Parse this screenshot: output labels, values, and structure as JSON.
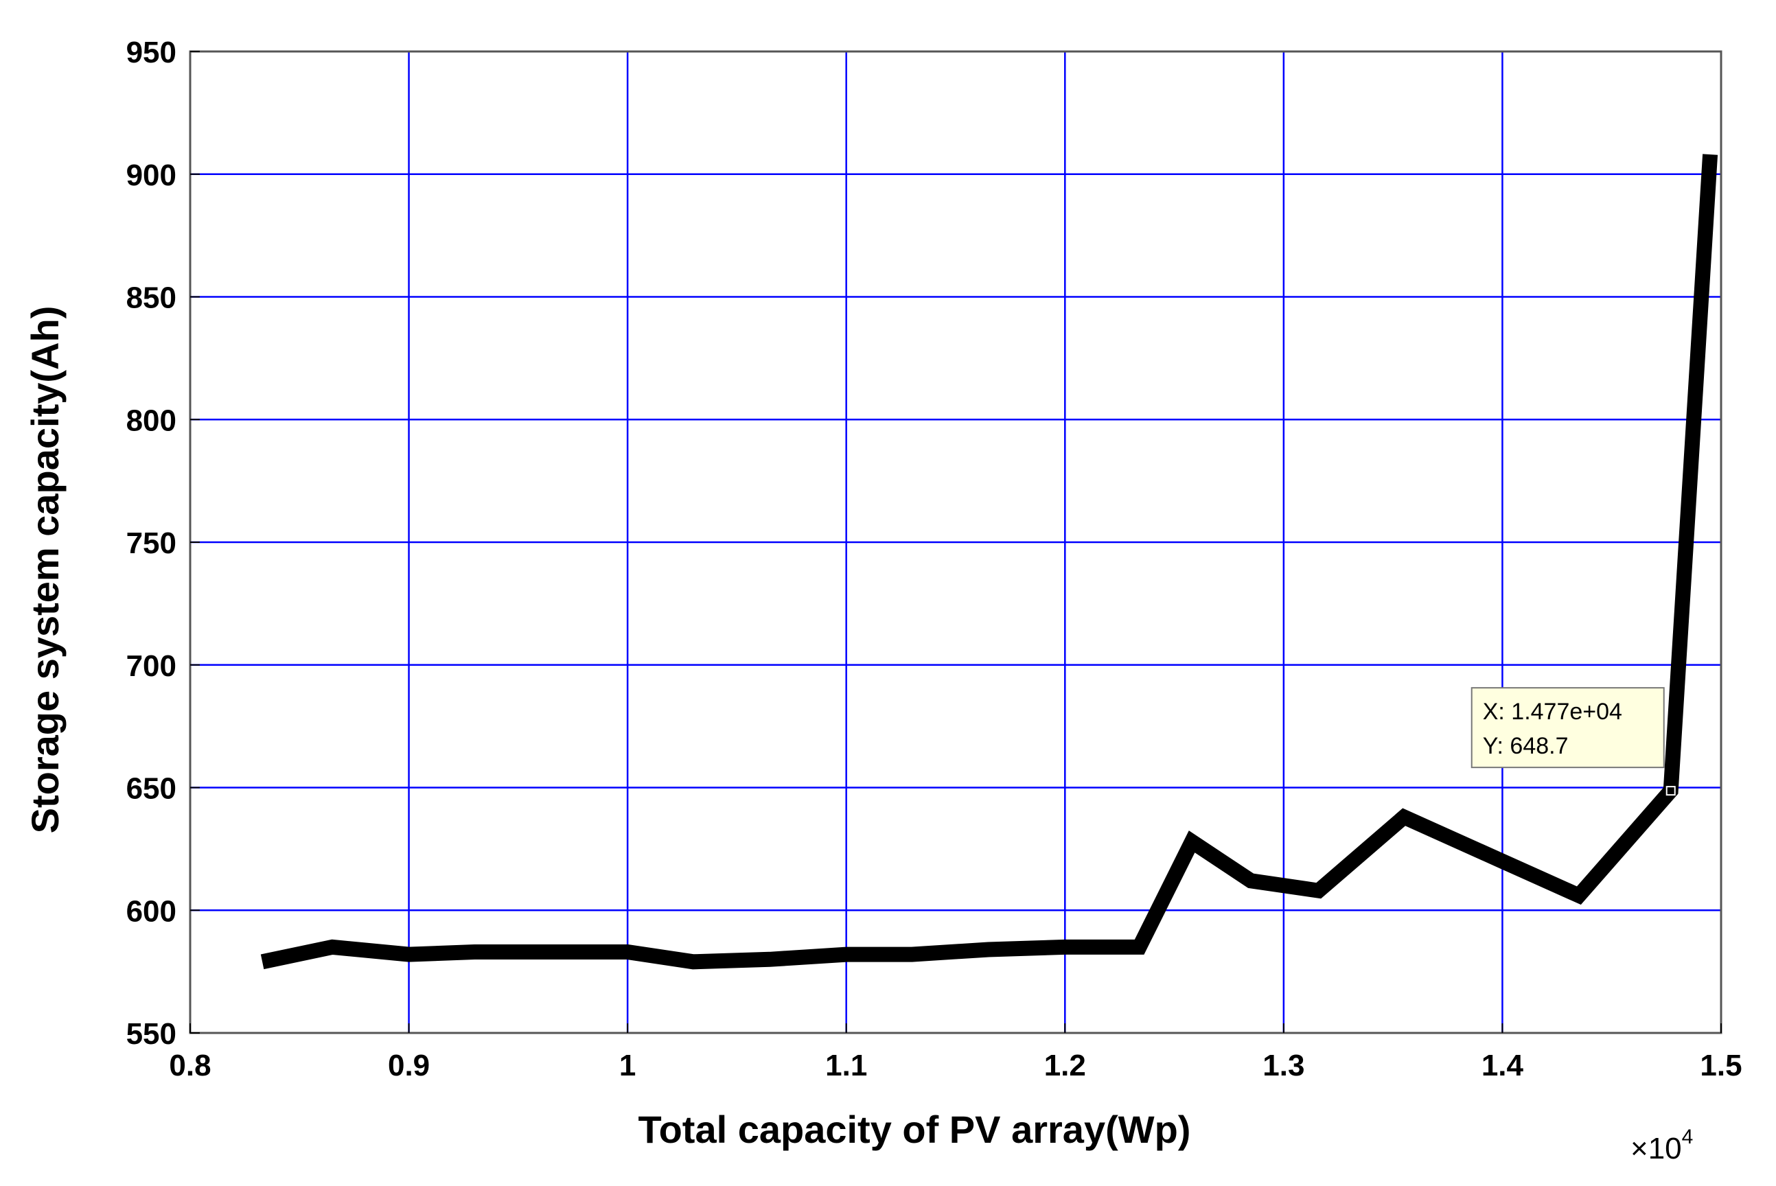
{
  "chart_data": {
    "type": "line",
    "xlabel": "Total capacity of PV array(Wp)",
    "ylabel": "Storage system capacity(Ah)",
    "x_exponent_label": "×10",
    "x_exponent_power": "4",
    "xlim": [
      0.8,
      1.5
    ],
    "ylim": [
      550,
      950
    ],
    "grid": true,
    "xticks": [
      0.8,
      0.9,
      1.0,
      1.1,
      1.2,
      1.3,
      1.4,
      1.5
    ],
    "xtick_labels": [
      "0.8",
      "0.9",
      "1",
      "1.1",
      "1.2",
      "1.3",
      "1.4",
      "1.5"
    ],
    "yticks": [
      550,
      600,
      650,
      700,
      750,
      800,
      850,
      900,
      950
    ],
    "ytick_labels": [
      "550",
      "600",
      "650",
      "700",
      "750",
      "800",
      "850",
      "900",
      "950"
    ],
    "colors": {
      "line": "#000000",
      "grid": "#0000ff",
      "datatip_bg": "#ffffe0"
    },
    "series": [
      {
        "x": [
          0.833,
          0.865,
          0.9,
          0.93,
          0.965,
          1.0,
          1.03,
          1.065,
          1.1,
          1.13,
          1.165,
          1.2,
          1.234,
          1.258,
          1.285,
          1.316,
          1.355,
          1.4,
          1.435,
          1.477,
          1.495
        ],
        "y": [
          579,
          585,
          582,
          583,
          583,
          583,
          579,
          580,
          582,
          582,
          584,
          585,
          585,
          628,
          612,
          608,
          638,
          620,
          606,
          648.7,
          908
        ]
      }
    ],
    "datatip": {
      "x": 1.477,
      "y": 648.7,
      "line1": "X: 1.477e+04",
      "line2": "Y: 648.7"
    }
  }
}
